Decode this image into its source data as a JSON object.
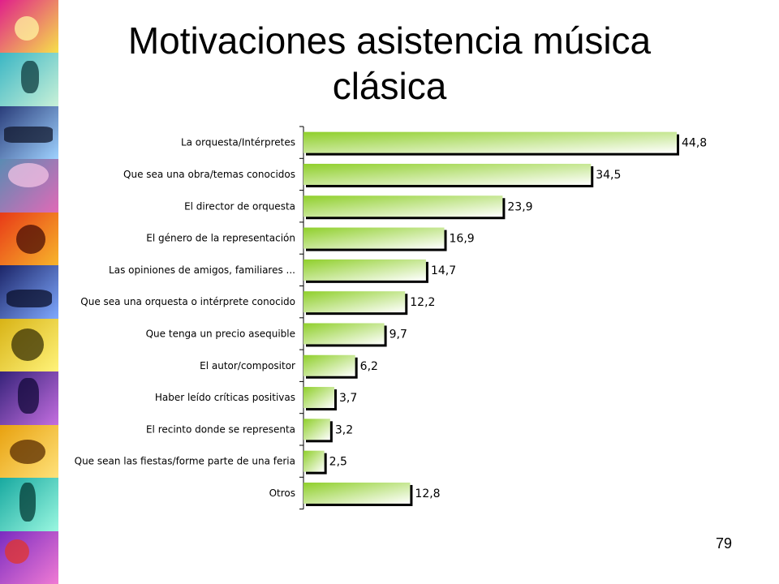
{
  "slide": {
    "title": "Motivaciones asistencia música clásica",
    "page_number": "79"
  },
  "colors": {
    "bar_gradient_start": "#8fcf2a",
    "bar_gradient_end": "#ffffff",
    "bar_shadow": "#000000",
    "axis": "#000000"
  },
  "chart_data": {
    "type": "bar",
    "orientation": "horizontal",
    "title": "",
    "xlabel": "",
    "ylabel": "",
    "xlim": [
      0,
      50
    ],
    "grid": false,
    "legend": "none",
    "categories": [
      "La orquesta/Intérpretes",
      "Que sea una obra/temas conocidos",
      "El director de orquesta",
      "El género de la representación",
      "Las opiniones de amigos, familiares ...",
      "Que sea una orquesta o intérprete conocido",
      "Que tenga un precio asequible",
      "El autor/compositor",
      "Haber leído críticas positivas",
      "El recinto donde se representa",
      "Que sean las fiestas/forme parte de una feria",
      "Otros"
    ],
    "values": [
      44.8,
      34.5,
      23.9,
      16.9,
      14.7,
      12.2,
      9.7,
      6.2,
      3.7,
      3.2,
      2.5,
      12.8
    ],
    "value_labels": [
      "44,8",
      "34,5",
      "23,9",
      "16,9",
      "14,7",
      "12,2",
      "9,7",
      "6,2",
      "3,7",
      "3,2",
      "2,5",
      "12,8"
    ]
  }
}
